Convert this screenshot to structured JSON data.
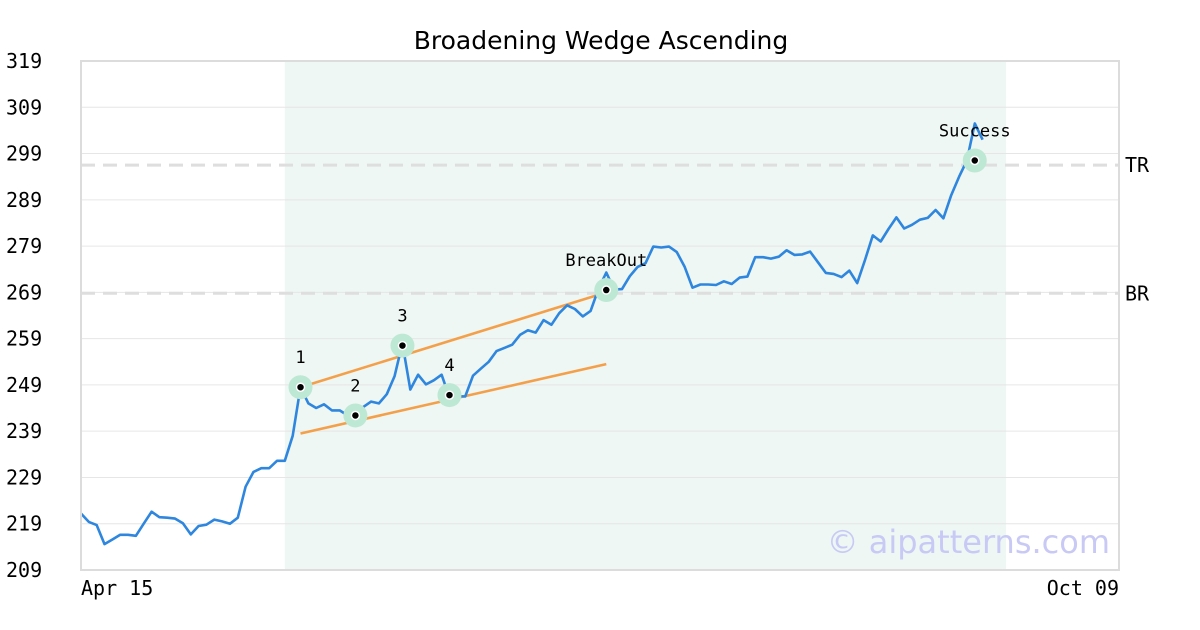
{
  "chart_data": {
    "type": "line",
    "title": "Broadening Wedge Ascending",
    "xlabel": "",
    "ylabel": "",
    "ylim": [
      209,
      319
    ],
    "y_ticks": [
      "319",
      "309",
      "299",
      "289",
      "279",
      "269",
      "259",
      "249",
      "239",
      "229",
      "219",
      "209"
    ],
    "x_tick_labels": [
      "Apr 15",
      "Oct 09"
    ],
    "x_index_range": [
      0,
      125
    ],
    "grid": "horizontal",
    "colors": {
      "price": "#2e86de",
      "wedge": "#f4a04a",
      "pivot_halo": "#bde8d4",
      "pivot_dot": "#000000",
      "pattern_region": "#eef7f3",
      "level": "#dedede",
      "watermark": "#c9c9f5",
      "frame": "#dcdcdc"
    },
    "pattern_region": {
      "x_start": 26,
      "x_end": 118
    },
    "series": [
      {
        "values": [
          221.2,
          219.4,
          218.7,
          214.6,
          215.6,
          216.6,
          216.6,
          216.4,
          219.0,
          221.6,
          220.4,
          220.3,
          220.1,
          219.1,
          216.7,
          218.5,
          218.8,
          219.9,
          219.5,
          219.0,
          220.3,
          227.0,
          230.2,
          231.0,
          231.0,
          232.6,
          232.6,
          238.0,
          248.5,
          245.0,
          244.0,
          244.8,
          243.5,
          243.5,
          242.4,
          242.4,
          244.2,
          245.4,
          245.0,
          247.0,
          250.9,
          258.0,
          248.0,
          251.2,
          249.1,
          250.0,
          251.2,
          246.3,
          246.6,
          246.5,
          251.0,
          252.5,
          254.0,
          256.3,
          257.0,
          257.7,
          259.8,
          260.8,
          260.3,
          263.0,
          262.0,
          264.5,
          266.2,
          265.4,
          263.8,
          265.0,
          269.7,
          273.3,
          269.6,
          269.7,
          272.5,
          274.5,
          275.3,
          278.9,
          278.7,
          278.9,
          277.7,
          274.5,
          270.0,
          270.7,
          270.7,
          270.6,
          271.4,
          270.8,
          272.2,
          272.4,
          276.6,
          276.6,
          276.3,
          276.7,
          278.1,
          277.1,
          277.2,
          277.8,
          275.5,
          273.2,
          273.0,
          272.3,
          273.7,
          271.0,
          276.0,
          281.3,
          280.0,
          282.7,
          285.2,
          282.8,
          283.6,
          284.7,
          285.1,
          286.8,
          285.0,
          290.0,
          294.0,
          297.5,
          305.5,
          302.0
        ]
      }
    ],
    "levels": [
      {
        "label": "TR",
        "value": 296.5
      },
      {
        "label": "BR",
        "value": 268.8
      }
    ],
    "trend_lines": [
      {
        "x1": 28,
        "y1": 248.5,
        "x2": 67,
        "y2": 269.0
      },
      {
        "x1": 28,
        "y1": 238.5,
        "x2": 67,
        "y2": 253.5
      }
    ],
    "pivots": [
      {
        "label": "1",
        "x": 28,
        "y": 248.5
      },
      {
        "label": "2",
        "x": 35,
        "y": 242.4
      },
      {
        "label": "3",
        "x": 41,
        "y": 257.5
      },
      {
        "label": "4",
        "x": 47,
        "y": 246.8
      },
      {
        "label": "BreakOut",
        "x": 67,
        "y": 269.5
      },
      {
        "label": "Success",
        "x": 114,
        "y": 297.5
      }
    ],
    "watermark": "© aipatterns.com"
  }
}
